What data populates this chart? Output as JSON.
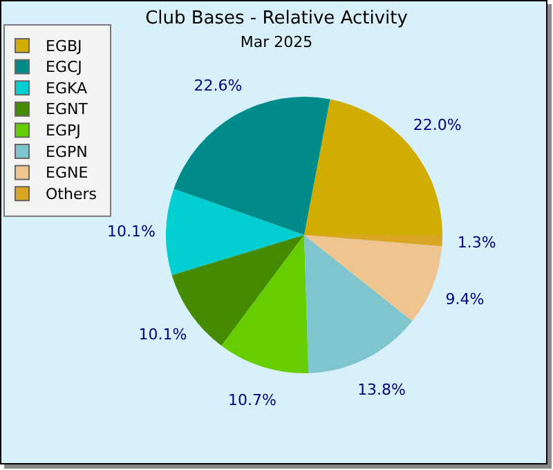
{
  "chart_data": {
    "type": "pie",
    "title": "Club Bases - Relative Activity",
    "subtitle": "Mar 2025",
    "categories": [
      "EGBJ",
      "EGCJ",
      "EGKA",
      "EGNT",
      "EGPJ",
      "EGPN",
      "EGNE",
      "Others"
    ],
    "values": [
      22.0,
      22.6,
      10.1,
      10.1,
      10.7,
      13.8,
      9.4,
      1.3
    ],
    "colors": [
      "#d0ad00",
      "#008b8b",
      "#00ced1",
      "#458b00",
      "#66cd00",
      "#7ec5cd",
      "#eec591",
      "#daa520"
    ],
    "value_labels": [
      "22.0%",
      "22.6%",
      "10.1%",
      "10.1%",
      "10.7%",
      "13.8%",
      "9.4%",
      "1.3%"
    ],
    "legend": "top left"
  }
}
